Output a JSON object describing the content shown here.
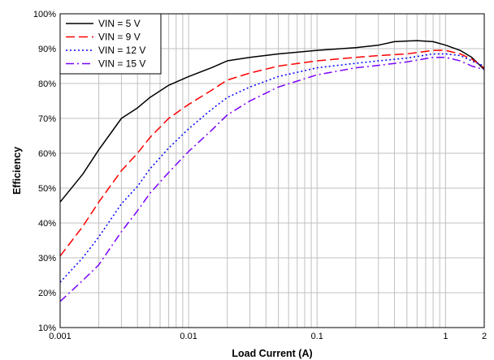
{
  "chart_data": {
    "type": "line",
    "xlabel": "Load Current (A)",
    "ylabel": "Efficiency",
    "x_scale": "log",
    "xlim": [
      0.001,
      2
    ],
    "ylim": [
      10,
      100
    ],
    "grid": true,
    "legend_position": "top-left",
    "x_ticks": [
      {
        "value": 0.001,
        "label": "0.001"
      },
      {
        "value": 0.01,
        "label": "0.01"
      },
      {
        "value": 0.1,
        "label": "0.1"
      },
      {
        "value": 1,
        "label": "1"
      },
      {
        "value": 2,
        "label": "2"
      }
    ],
    "y_ticks": [
      {
        "value": 10,
        "label": "10%"
      },
      {
        "value": 20,
        "label": "20%"
      },
      {
        "value": 30,
        "label": "30%"
      },
      {
        "value": 40,
        "label": "40%"
      },
      {
        "value": 50,
        "label": "50%"
      },
      {
        "value": 60,
        "label": "60%"
      },
      {
        "value": 70,
        "label": "70%"
      },
      {
        "value": 80,
        "label": "80%"
      },
      {
        "value": 90,
        "label": "90%"
      },
      {
        "value": 100,
        "label": "100%"
      }
    ],
    "series": [
      {
        "name": "VIN = 5 V",
        "color": "#000000",
        "dash": "solid",
        "points": [
          [
            0.001,
            46
          ],
          [
            0.0015,
            54
          ],
          [
            0.002,
            61
          ],
          [
            0.003,
            70
          ],
          [
            0.004,
            73
          ],
          [
            0.005,
            76
          ],
          [
            0.007,
            79.5
          ],
          [
            0.01,
            82
          ],
          [
            0.015,
            84.5
          ],
          [
            0.02,
            86.5
          ],
          [
            0.03,
            87.5
          ],
          [
            0.05,
            88.5
          ],
          [
            0.1,
            89.5
          ],
          [
            0.2,
            90.3
          ],
          [
            0.3,
            91
          ],
          [
            0.4,
            92
          ],
          [
            0.6,
            92.3
          ],
          [
            0.8,
            92
          ],
          [
            1,
            91
          ],
          [
            1.3,
            89.5
          ],
          [
            1.6,
            87.5
          ],
          [
            2,
            84
          ]
        ]
      },
      {
        "name": "VIN = 9 V",
        "color": "#ff0000",
        "dash": "long-dash",
        "points": [
          [
            0.001,
            30.5
          ],
          [
            0.0015,
            39
          ],
          [
            0.002,
            46
          ],
          [
            0.003,
            55
          ],
          [
            0.004,
            60
          ],
          [
            0.005,
            64.5
          ],
          [
            0.007,
            70
          ],
          [
            0.01,
            74
          ],
          [
            0.015,
            78
          ],
          [
            0.02,
            81
          ],
          [
            0.03,
            83
          ],
          [
            0.05,
            85
          ],
          [
            0.1,
            86.5
          ],
          [
            0.2,
            87.5
          ],
          [
            0.3,
            88
          ],
          [
            0.5,
            88.5
          ],
          [
            0.8,
            89.5
          ],
          [
            1,
            89.5
          ],
          [
            1.3,
            88.5
          ],
          [
            1.6,
            87
          ],
          [
            2,
            84.5
          ]
        ]
      },
      {
        "name": "VIN = 12 V",
        "color": "#0000ff",
        "dash": "dot",
        "points": [
          [
            0.001,
            23
          ],
          [
            0.0015,
            30
          ],
          [
            0.002,
            36
          ],
          [
            0.003,
            45.5
          ],
          [
            0.004,
            50.5
          ],
          [
            0.005,
            55.5
          ],
          [
            0.007,
            61.5
          ],
          [
            0.01,
            67
          ],
          [
            0.015,
            72.5
          ],
          [
            0.02,
            76
          ],
          [
            0.03,
            79
          ],
          [
            0.05,
            82
          ],
          [
            0.1,
            84.5
          ],
          [
            0.2,
            85.8
          ],
          [
            0.3,
            86.5
          ],
          [
            0.5,
            87.3
          ],
          [
            0.8,
            88.5
          ],
          [
            1,
            88.5
          ],
          [
            1.3,
            88
          ],
          [
            1.6,
            86.5
          ],
          [
            2,
            85
          ]
        ]
      },
      {
        "name": "VIN = 15 V",
        "color": "#7b00ff",
        "dash": "dash-dot",
        "points": [
          [
            0.001,
            17.5
          ],
          [
            0.0015,
            23.5
          ],
          [
            0.002,
            28
          ],
          [
            0.003,
            37.5
          ],
          [
            0.004,
            43.5
          ],
          [
            0.005,
            48.5
          ],
          [
            0.007,
            54.5
          ],
          [
            0.01,
            60.5
          ],
          [
            0.015,
            66.5
          ],
          [
            0.02,
            71
          ],
          [
            0.03,
            75
          ],
          [
            0.05,
            79
          ],
          [
            0.1,
            82.5
          ],
          [
            0.2,
            84.5
          ],
          [
            0.3,
            85.2
          ],
          [
            0.5,
            86.2
          ],
          [
            0.8,
            87.5
          ],
          [
            1,
            87.5
          ],
          [
            1.3,
            86.5
          ],
          [
            1.6,
            85
          ],
          [
            2,
            84
          ]
        ]
      }
    ]
  }
}
